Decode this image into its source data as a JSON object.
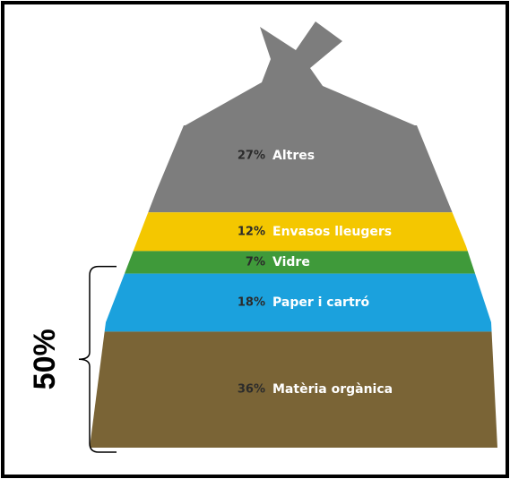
{
  "chart_data": {
    "type": "bag",
    "categories": [
      "Altres",
      "Envasos lleugers",
      "Vidre",
      "Paper i cartró",
      "Matèria orgànica"
    ],
    "values": [
      27,
      12,
      7,
      18,
      36
    ],
    "value_labels": [
      "27%",
      "12%",
      "7%",
      "18%",
      "36%"
    ],
    "colors": [
      "#7d7d7d",
      "#f4c700",
      "#3f9a3a",
      "#1ba1dd",
      "#7a6436"
    ],
    "annotation": "50%"
  }
}
